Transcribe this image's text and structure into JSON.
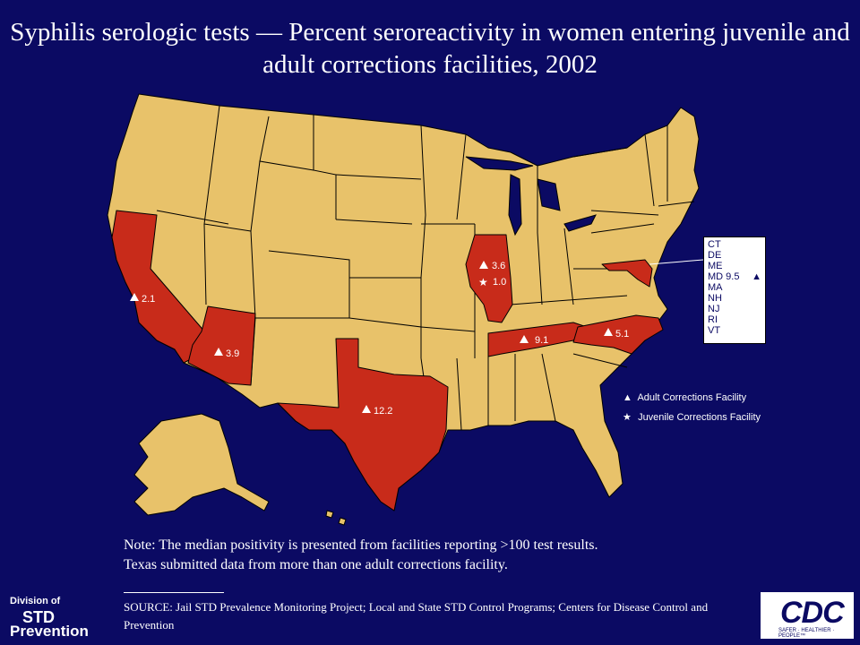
{
  "title": "Syphilis serologic tests — Percent seroreactivity in women entering juvenile and adult corrections facilities, 2002",
  "colors": {
    "background": "#0b0a63",
    "state_default": "#e8c26a",
    "state_highlight": "#c82b1a",
    "border": "#000000"
  },
  "state_values": [
    {
      "state": "CA",
      "marker": "adult",
      "value": "2.1"
    },
    {
      "state": "AZ",
      "marker": "adult",
      "value": "3.9"
    },
    {
      "state": "TX",
      "marker": "adult",
      "value": "12.2"
    },
    {
      "state": "IL",
      "marker": "adult",
      "value": "3.6"
    },
    {
      "state": "IL",
      "marker": "juvenile",
      "value": "1.0"
    },
    {
      "state": "TN",
      "marker": "adult",
      "value": "9.1"
    },
    {
      "state": "NC",
      "marker": "adult",
      "value": "5.1"
    },
    {
      "state": "MD",
      "marker": "adult",
      "value": "9.5"
    }
  ],
  "labels": {
    "ca": "2.1",
    "az": "3.9",
    "tx": "12.2",
    "il_adult": "3.6",
    "il_juv": "1.0",
    "tn": "9.1",
    "nc": "5.1"
  },
  "small_states": [
    {
      "abbr": "CT",
      "value": ""
    },
    {
      "abbr": "DE",
      "value": ""
    },
    {
      "abbr": "ME",
      "value": ""
    },
    {
      "abbr": "MD",
      "value": "9.5"
    },
    {
      "abbr": "MA",
      "value": ""
    },
    {
      "abbr": "NH",
      "value": ""
    },
    {
      "abbr": "NJ",
      "value": ""
    },
    {
      "abbr": "RI",
      "value": ""
    },
    {
      "abbr": "VT",
      "value": ""
    }
  ],
  "legend": {
    "adult": "Adult Corrections Facility",
    "juvenile": "Juvenile Corrections Facility"
  },
  "note": {
    "line1": "Note: The median positivity is presented from facilities reporting >100 test results.",
    "line2": "Texas submitted data from more than one adult corrections facility."
  },
  "source": "SOURCE: Jail STD Prevalence Monitoring Project; Local and State STD Control Programs; Centers for Disease Control and Prevention",
  "logos": {
    "std_line1": "Division of",
    "std_line2": "STD",
    "std_line3": "Prevention",
    "cdc_text": "CDC",
    "cdc_tagline": "SAFER · HEALTHIER · PEOPLE™"
  }
}
